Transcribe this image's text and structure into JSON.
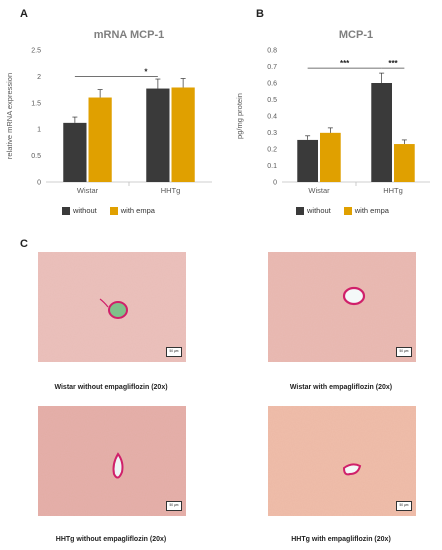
{
  "panels": {
    "a": "A",
    "b": "B",
    "c": "C"
  },
  "chart_data": [
    {
      "type": "bar",
      "title": "mRNA MCP-1",
      "ylabel": "relative mRNA expression",
      "categories": [
        "Wistar",
        "HHTg"
      ],
      "series": [
        {
          "name": "without",
          "values": [
            1.12,
            1.77
          ],
          "errors": [
            0.11,
            0.18
          ]
        },
        {
          "name": "with empa",
          "values": [
            1.6,
            1.79
          ],
          "errors": [
            0.15,
            0.17
          ]
        }
      ],
      "ylim": [
        0,
        2.5
      ],
      "yticks": [
        "0",
        "0.5",
        "1",
        "1.5",
        "2",
        "2.5"
      ],
      "annotations": [
        "*"
      ],
      "legend": "bottom"
    },
    {
      "type": "bar",
      "title": "MCP-1",
      "ylabel": "pg/mg protein",
      "categories": [
        "Wistar",
        "HHTg"
      ],
      "series": [
        {
          "name": "without",
          "values": [
            0.255,
            0.6
          ],
          "errors": [
            0.025,
            0.06
          ]
        },
        {
          "name": "with empa",
          "values": [
            0.298,
            0.23
          ],
          "errors": [
            0.03,
            0.025
          ]
        }
      ],
      "ylim": [
        0,
        0.8
      ],
      "yticks": [
        "0",
        "0.1",
        "0.2",
        "0.3",
        "0.4",
        "0.5",
        "0.6",
        "0.7",
        "0.8"
      ],
      "annotations": [
        "***",
        "***"
      ],
      "legend": "bottom"
    }
  ],
  "colors": {
    "without": "#3a3a3a",
    "with_empa": "#e0a000",
    "axis": "#bfbfbf",
    "title": "#7f7f7f",
    "tick": "#595959"
  },
  "micrographs": [
    {
      "caption": "Wistar without empagliflozin (20x)",
      "scale": "50 µm",
      "tint": "#e6b7b0"
    },
    {
      "caption": "Wistar with empagliflozin (20x)",
      "scale": "50 µm",
      "tint": "#e4b2aa"
    },
    {
      "caption": "HHTg without empagliflozin (20x)",
      "scale": "50 µm",
      "tint": "#e0aaa0"
    },
    {
      "caption": "HHTg with empagliflozin (20x)",
      "scale": "50 µm",
      "tint": "#eab49f"
    }
  ]
}
